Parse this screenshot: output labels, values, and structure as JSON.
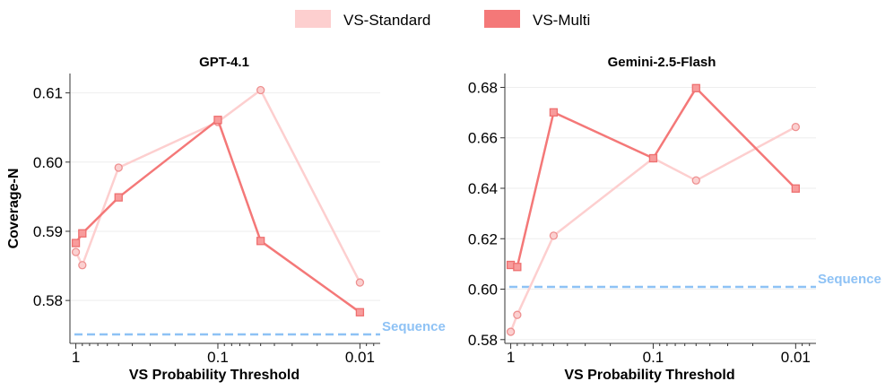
{
  "legend": [
    {
      "name": "VS-Standard",
      "color": "#fdcfcf"
    },
    {
      "name": "VS-Multi",
      "color": "#f47878"
    }
  ],
  "colors": {
    "standard_line": "#fdcfcf",
    "standard_marker_fill": "#fbd0d0",
    "standard_marker_edge": "#ee9090",
    "multi_line": "#f47878",
    "multi_marker_fill": "#f89c9c",
    "multi_marker_edge": "#ee7070",
    "sequence": "#8ec2f5",
    "axis": "#333333",
    "grid": "#eeeeee"
  },
  "chart_data": [
    {
      "type": "line",
      "title": "GPT-4.1",
      "xlabel": "VS Probability Threshold",
      "ylabel": "Coverage-N",
      "xscale": "log-reversed",
      "xlim": [
        1.1,
        0.0072
      ],
      "ylim": [
        0.5738,
        0.6128
      ],
      "xticks": [
        {
          "value": 1,
          "label": "1"
        },
        {
          "value": 0.1,
          "label": "0.1"
        },
        {
          "value": 0.01,
          "label": "0.01"
        }
      ],
      "yticks": [
        {
          "value": 0.58,
          "label": "0.58"
        },
        {
          "value": 0.59,
          "label": "0.59"
        },
        {
          "value": 0.6,
          "label": "0.60"
        },
        {
          "value": 0.61,
          "label": "0.61"
        }
      ],
      "series": [
        {
          "name": "VS-Standard",
          "marker": "circle",
          "x": [
            1.0,
            0.9,
            0.5,
            0.1,
            0.05,
            0.01
          ],
          "values": [
            0.587,
            0.5851,
            0.5992,
            0.6058,
            0.6104,
            0.5826
          ]
        },
        {
          "name": "VS-Multi",
          "marker": "square",
          "x": [
            1.0,
            0.9,
            0.5,
            0.1,
            0.05,
            0.01
          ],
          "values": [
            0.5883,
            0.5897,
            0.5949,
            0.6061,
            0.5886,
            0.5783
          ]
        }
      ],
      "reference_line": {
        "label": "Sequence",
        "value": 0.5751
      }
    },
    {
      "type": "line",
      "title": "Gemini-2.5-Flash",
      "xlabel": "VS Probability Threshold",
      "ylabel": "",
      "xscale": "log-reversed",
      "xlim": [
        1.1,
        0.0072
      ],
      "ylim": [
        0.5785,
        0.6855
      ],
      "xticks": [
        {
          "value": 1,
          "label": "1"
        },
        {
          "value": 0.1,
          "label": "0.1"
        },
        {
          "value": 0.01,
          "label": "0.01"
        }
      ],
      "yticks": [
        {
          "value": 0.58,
          "label": "0.58"
        },
        {
          "value": 0.6,
          "label": "0.60"
        },
        {
          "value": 0.62,
          "label": "0.62"
        },
        {
          "value": 0.64,
          "label": "0.64"
        },
        {
          "value": 0.66,
          "label": "0.66"
        },
        {
          "value": 0.68,
          "label": "0.68"
        }
      ],
      "series": [
        {
          "name": "VS-Standard",
          "marker": "circle",
          "x": [
            1.0,
            0.9,
            0.5,
            0.1,
            0.05,
            0.01
          ],
          "values": [
            0.5831,
            0.5898,
            0.6212,
            0.6519,
            0.6431,
            0.6643
          ]
        },
        {
          "name": "VS-Multi",
          "marker": "square",
          "x": [
            1.0,
            0.9,
            0.5,
            0.1,
            0.05,
            0.01
          ],
          "values": [
            0.6096,
            0.6088,
            0.6701,
            0.6519,
            0.6797,
            0.6399
          ]
        }
      ],
      "reference_line": {
        "label": "Sequence",
        "value": 0.6009
      }
    }
  ]
}
